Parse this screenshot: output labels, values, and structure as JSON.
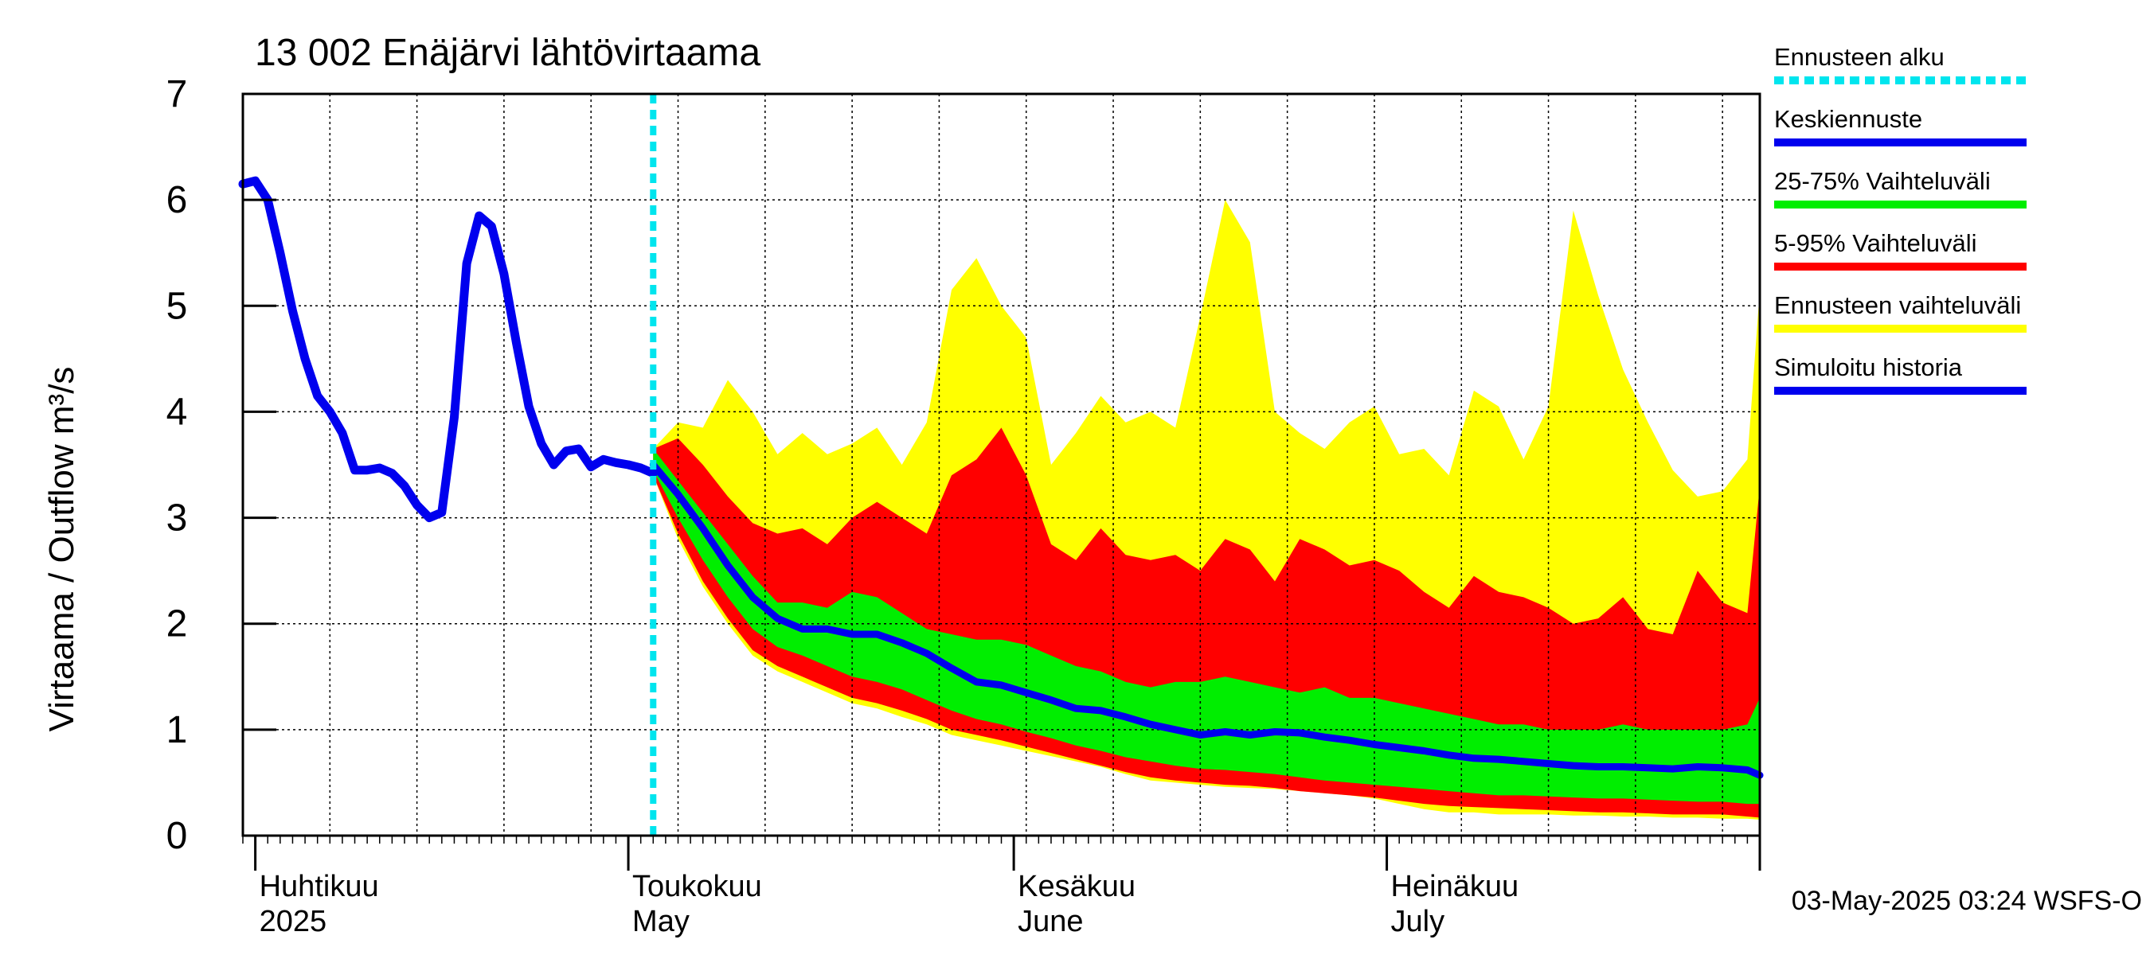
{
  "chart_data": {
    "type": "area",
    "title": "13 002 Enäjärvi lähtövirtaama",
    "ylabel": "Virtaama / Outflow    m³/s",
    "ylim": [
      0,
      7
    ],
    "y_ticks": [
      "0",
      "1",
      "2",
      "3",
      "4",
      "5",
      "6",
      "7"
    ],
    "x_range": [
      "2025-03-31",
      "2025-07-31"
    ],
    "grid": true,
    "legend_position": "right",
    "month_labels": [
      {
        "date": "2025-04-01",
        "line1": "Huhtikuu",
        "line2": "2025"
      },
      {
        "date": "2025-05-01",
        "line1": "Toukokuu",
        "line2": "May"
      },
      {
        "date": "2025-06-01",
        "line1": "Kesäkuu",
        "line2": "June"
      },
      {
        "date": "2025-07-01",
        "line1": "Heinäkuu",
        "line2": "July"
      }
    ],
    "forecast_start": "2025-05-03",
    "footer": "03-May-2025 03:24 WSFS-O",
    "colors": {
      "forecast_start": "#00e5ee",
      "mean": "#0000ee",
      "band_25_75": "#00ee00",
      "band_5_95": "#ff0000",
      "band_forecast": "#ffff00",
      "history": "#0000ee",
      "grid": "#000000"
    },
    "legend": [
      {
        "key": "forecast_start",
        "label": "Ennusteen alku",
        "style": "dotted"
      },
      {
        "key": "mean",
        "label": "Keskiennuste",
        "style": "line"
      },
      {
        "key": "band_25_75",
        "label": "25-75% Vaihteluväli",
        "style": "line"
      },
      {
        "key": "band_5_95",
        "label": "5-95% Vaihteluväli",
        "style": "line"
      },
      {
        "key": "band_forecast",
        "label": "Ennusteen vaihteluväli",
        "style": "line"
      },
      {
        "key": "history",
        "label": "Simuloitu historia",
        "style": "line"
      }
    ],
    "history": {
      "x": [
        "2025-03-31",
        "2025-04-01",
        "2025-04-02",
        "2025-04-03",
        "2025-04-04",
        "2025-04-05",
        "2025-04-06",
        "2025-04-07",
        "2025-04-08",
        "2025-04-09",
        "2025-04-10",
        "2025-04-11",
        "2025-04-12",
        "2025-04-13",
        "2025-04-14",
        "2025-04-15",
        "2025-04-16",
        "2025-04-17",
        "2025-04-18",
        "2025-04-19",
        "2025-04-20",
        "2025-04-21",
        "2025-04-22",
        "2025-04-23",
        "2025-04-24",
        "2025-04-25",
        "2025-04-26",
        "2025-04-27",
        "2025-04-28",
        "2025-04-29",
        "2025-04-30",
        "2025-05-01",
        "2025-05-02",
        "2025-05-03"
      ],
      "y": [
        6.15,
        6.18,
        6.0,
        5.5,
        4.95,
        4.5,
        4.15,
        4.0,
        3.8,
        3.45,
        3.45,
        3.47,
        3.42,
        3.3,
        3.12,
        3.0,
        3.05,
        3.95,
        5.4,
        5.85,
        5.75,
        5.3,
        4.65,
        4.05,
        3.7,
        3.5,
        3.63,
        3.65,
        3.48,
        3.55,
        3.52,
        3.5,
        3.47,
        3.42
      ]
    },
    "forecast_x": [
      "2025-05-03",
      "2025-05-05",
      "2025-05-07",
      "2025-05-09",
      "2025-05-11",
      "2025-05-13",
      "2025-05-15",
      "2025-05-17",
      "2025-05-19",
      "2025-05-21",
      "2025-05-23",
      "2025-05-25",
      "2025-05-27",
      "2025-05-29",
      "2025-05-31",
      "2025-06-02",
      "2025-06-04",
      "2025-06-06",
      "2025-06-08",
      "2025-06-10",
      "2025-06-12",
      "2025-06-14",
      "2025-06-16",
      "2025-06-18",
      "2025-06-20",
      "2025-06-22",
      "2025-06-24",
      "2025-06-26",
      "2025-06-28",
      "2025-06-30",
      "2025-07-02",
      "2025-07-04",
      "2025-07-06",
      "2025-07-08",
      "2025-07-10",
      "2025-07-12",
      "2025-07-14",
      "2025-07-16",
      "2025-07-18",
      "2025-07-20",
      "2025-07-22",
      "2025-07-24",
      "2025-07-26",
      "2025-07-28",
      "2025-07-30",
      "2025-07-31"
    ],
    "band_forecast_max": [
      3.65,
      3.9,
      3.85,
      4.3,
      4.0,
      3.6,
      3.8,
      3.6,
      3.7,
      3.85,
      3.5,
      3.9,
      5.15,
      5.45,
      5.0,
      4.7,
      3.5,
      3.8,
      4.15,
      3.9,
      4.0,
      3.85,
      4.9,
      6.0,
      5.6,
      4.0,
      3.8,
      3.65,
      3.9,
      4.05,
      3.6,
      3.65,
      3.4,
      4.2,
      4.05,
      3.55,
      4.05,
      5.9,
      5.1,
      4.4,
      3.9,
      3.45,
      3.2,
      3.25,
      3.55,
      5.15
    ],
    "band_5_95_max": [
      3.65,
      3.75,
      3.5,
      3.2,
      2.95,
      2.85,
      2.9,
      2.75,
      3.0,
      3.15,
      3.0,
      2.85,
      3.4,
      3.55,
      3.85,
      3.4,
      2.75,
      2.6,
      2.9,
      2.65,
      2.6,
      2.65,
      2.5,
      2.8,
      2.7,
      2.4,
      2.8,
      2.7,
      2.55,
      2.6,
      2.5,
      2.3,
      2.15,
      2.45,
      2.3,
      2.25,
      2.15,
      2.0,
      2.05,
      2.25,
      1.95,
      1.9,
      2.5,
      2.2,
      2.1,
      3.3
    ],
    "band_25_75_max": [
      3.65,
      3.35,
      3.05,
      2.75,
      2.45,
      2.2,
      2.2,
      2.15,
      2.3,
      2.25,
      2.1,
      1.95,
      1.9,
      1.85,
      1.85,
      1.8,
      1.7,
      1.6,
      1.55,
      1.45,
      1.4,
      1.45,
      1.45,
      1.5,
      1.45,
      1.4,
      1.35,
      1.4,
      1.3,
      1.3,
      1.25,
      1.2,
      1.15,
      1.1,
      1.05,
      1.05,
      1.0,
      1.0,
      1.0,
      1.05,
      1.0,
      1.0,
      1.0,
      1.0,
      1.05,
      1.3
    ],
    "mean": [
      3.5,
      3.22,
      2.9,
      2.55,
      2.25,
      2.05,
      1.95,
      1.95,
      1.9,
      1.9,
      1.82,
      1.72,
      1.58,
      1.45,
      1.42,
      1.35,
      1.28,
      1.2,
      1.18,
      1.12,
      1.05,
      1.0,
      0.95,
      0.98,
      0.95,
      0.98,
      0.97,
      0.93,
      0.9,
      0.86,
      0.83,
      0.8,
      0.76,
      0.73,
      0.72,
      0.7,
      0.68,
      0.66,
      0.65,
      0.65,
      0.64,
      0.63,
      0.65,
      0.64,
      0.62,
      0.57
    ],
    "band_25_75_min": [
      3.45,
      3.0,
      2.6,
      2.25,
      1.95,
      1.78,
      1.7,
      1.6,
      1.5,
      1.45,
      1.38,
      1.28,
      1.18,
      1.1,
      1.05,
      0.98,
      0.92,
      0.85,
      0.8,
      0.74,
      0.7,
      0.66,
      0.63,
      0.62,
      0.6,
      0.58,
      0.55,
      0.52,
      0.5,
      0.48,
      0.46,
      0.44,
      0.42,
      0.4,
      0.38,
      0.38,
      0.37,
      0.36,
      0.35,
      0.35,
      0.34,
      0.33,
      0.32,
      0.32,
      0.3,
      0.3
    ],
    "band_5_95_min": [
      3.4,
      2.85,
      2.4,
      2.05,
      1.75,
      1.6,
      1.5,
      1.4,
      1.3,
      1.25,
      1.18,
      1.1,
      1.0,
      0.95,
      0.9,
      0.84,
      0.78,
      0.72,
      0.66,
      0.6,
      0.55,
      0.52,
      0.5,
      0.48,
      0.47,
      0.45,
      0.42,
      0.4,
      0.38,
      0.36,
      0.33,
      0.3,
      0.28,
      0.27,
      0.26,
      0.25,
      0.24,
      0.23,
      0.22,
      0.22,
      0.21,
      0.2,
      0.2,
      0.2,
      0.18,
      0.17
    ],
    "band_forecast_min": [
      3.4,
      2.8,
      2.35,
      2.0,
      1.7,
      1.55,
      1.45,
      1.35,
      1.25,
      1.2,
      1.12,
      1.05,
      0.95,
      0.9,
      0.85,
      0.8,
      0.75,
      0.7,
      0.65,
      0.58,
      0.52,
      0.5,
      0.48,
      0.46,
      0.45,
      0.44,
      0.42,
      0.4,
      0.38,
      0.35,
      0.3,
      0.25,
      0.22,
      0.22,
      0.2,
      0.2,
      0.2,
      0.19,
      0.19,
      0.18,
      0.18,
      0.17,
      0.17,
      0.16,
      0.16,
      0.15
    ]
  }
}
